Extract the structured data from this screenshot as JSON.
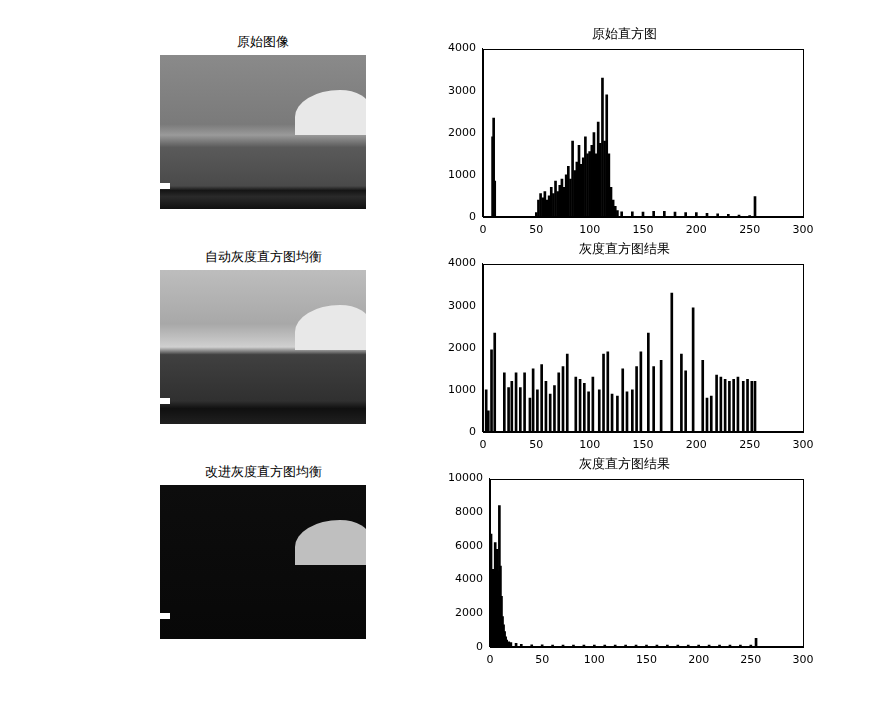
{
  "images": [
    {
      "title": "原始图像"
    },
    {
      "title": "自动灰度直方图均衡"
    },
    {
      "title": "改进灰度直方图均衡"
    }
  ],
  "chart_data": [
    {
      "type": "bar",
      "title": "原始直方图",
      "color": "#000000",
      "grid": false,
      "x": [
        9,
        10,
        11,
        50,
        52,
        54,
        56,
        58,
        60,
        62,
        64,
        66,
        68,
        70,
        72,
        74,
        76,
        78,
        80,
        82,
        84,
        86,
        88,
        90,
        92,
        94,
        96,
        98,
        100,
        102,
        104,
        106,
        108,
        110,
        112,
        114,
        116,
        118,
        120,
        122,
        124,
        126,
        130,
        140,
        150,
        160,
        170,
        180,
        190,
        200,
        210,
        220,
        230,
        240,
        250,
        255
      ],
      "values": [
        1900,
        2350,
        850,
        100,
        400,
        550,
        450,
        600,
        400,
        500,
        700,
        550,
        850,
        600,
        750,
        900,
        700,
        1000,
        1200,
        900,
        1800,
        1100,
        1300,
        1700,
        1250,
        1400,
        1900,
        1500,
        1550,
        1700,
        2000,
        1500,
        2250,
        1750,
        3300,
        1800,
        2900,
        1500,
        700,
        400,
        250,
        150,
        120,
        120,
        110,
        130,
        130,
        110,
        100,
        100,
        80,
        70,
        60,
        40,
        30,
        480
      ],
      "xlim": [
        0,
        300
      ],
      "xticks": [
        0,
        50,
        100,
        150,
        200,
        250,
        300
      ],
      "ylim": [
        0,
        4000
      ],
      "yticks": [
        0,
        1000,
        2000,
        3000,
        4000
      ]
    },
    {
      "type": "bar",
      "title": "灰度直方图结果",
      "color": "#000000",
      "grid": false,
      "x": [
        3,
        5,
        8,
        11,
        20,
        24,
        27,
        31,
        35,
        39,
        44,
        47,
        51,
        55,
        59,
        63,
        67,
        71,
        75,
        79,
        87,
        91,
        95,
        99,
        103,
        109,
        113,
        117,
        121,
        126,
        131,
        135,
        140,
        144,
        148,
        155,
        160,
        167,
        177,
        186,
        190,
        197,
        206,
        210,
        214,
        219,
        223,
        227,
        231,
        235,
        239,
        244,
        248,
        252,
        255
      ],
      "values": [
        1000,
        500,
        1950,
        2350,
        1400,
        1050,
        1200,
        1400,
        1050,
        1400,
        800,
        1500,
        1000,
        1600,
        1200,
        900,
        1100,
        1400,
        1550,
        1850,
        1300,
        1250,
        1150,
        950,
        1300,
        1000,
        1850,
        1900,
        900,
        850,
        1500,
        950,
        1000,
        1550,
        1900,
        2350,
        1550,
        1700,
        3300,
        1850,
        1450,
        2950,
        1700,
        800,
        850,
        1350,
        1300,
        1250,
        1200,
        1250,
        1300,
        1200,
        1250,
        1200,
        1200
      ],
      "xlim": [
        0,
        300
      ],
      "xticks": [
        0,
        50,
        100,
        150,
        200,
        250,
        300
      ],
      "ylim": [
        0,
        4000
      ],
      "yticks": [
        0,
        1000,
        2000,
        3000,
        4000
      ]
    },
    {
      "type": "bar",
      "title": "灰度直方图结果",
      "color": "#000000",
      "grid": false,
      "x": [
        1,
        2,
        3,
        4,
        5,
        6,
        7,
        8,
        9,
        10,
        11,
        12,
        13,
        14,
        15,
        16,
        18,
        20,
        25,
        30,
        40,
        50,
        60,
        70,
        80,
        90,
        100,
        110,
        120,
        130,
        140,
        150,
        160,
        170,
        180,
        190,
        200,
        210,
        220,
        230,
        240,
        250,
        255
      ],
      "values": [
        6700,
        4000,
        4600,
        4000,
        6200,
        4200,
        5800,
        4500,
        8400,
        4800,
        3000,
        1800,
        1300,
        900,
        600,
        400,
        300,
        250,
        200,
        150,
        120,
        110,
        100,
        100,
        100,
        100,
        100,
        100,
        100,
        100,
        100,
        100,
        100,
        100,
        100,
        100,
        100,
        100,
        100,
        100,
        100,
        100,
        500
      ],
      "xlim": [
        0,
        300
      ],
      "xticks": [
        0,
        50,
        100,
        150,
        200,
        250,
        300
      ],
      "ylim": [
        0,
        10000
      ],
      "yticks": [
        0,
        2000,
        4000,
        6000,
        8000,
        10000
      ]
    }
  ]
}
